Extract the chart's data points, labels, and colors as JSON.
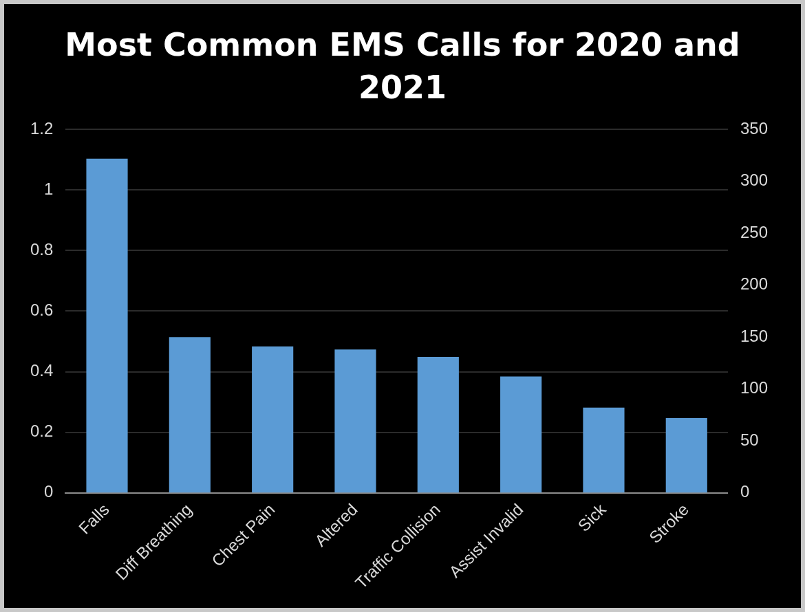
{
  "chart_data": {
    "type": "bar",
    "title": "Most Common EMS Calls for 2020 and 2021",
    "categories": [
      "Falls",
      "Diff Breathing",
      "Chest Pain",
      "Altered",
      "Traffic Collision",
      "Assist Invalid",
      "Sick",
      "Stroke"
    ],
    "series": [
      {
        "color": "#5b9bd5",
        "axis": "y2",
        "values": [
          322,
          150,
          141,
          138,
          131,
          112,
          82,
          72
        ]
      }
    ],
    "ylim": [
      0,
      1.2
    ],
    "yticks": [
      0,
      0.2,
      0.4,
      0.6,
      0.8,
      1,
      1.2
    ],
    "y2lim": [
      0,
      350
    ],
    "y2ticks": [
      0,
      50,
      100,
      150,
      200,
      250,
      300,
      350
    ],
    "grid": "y",
    "legend": false
  }
}
